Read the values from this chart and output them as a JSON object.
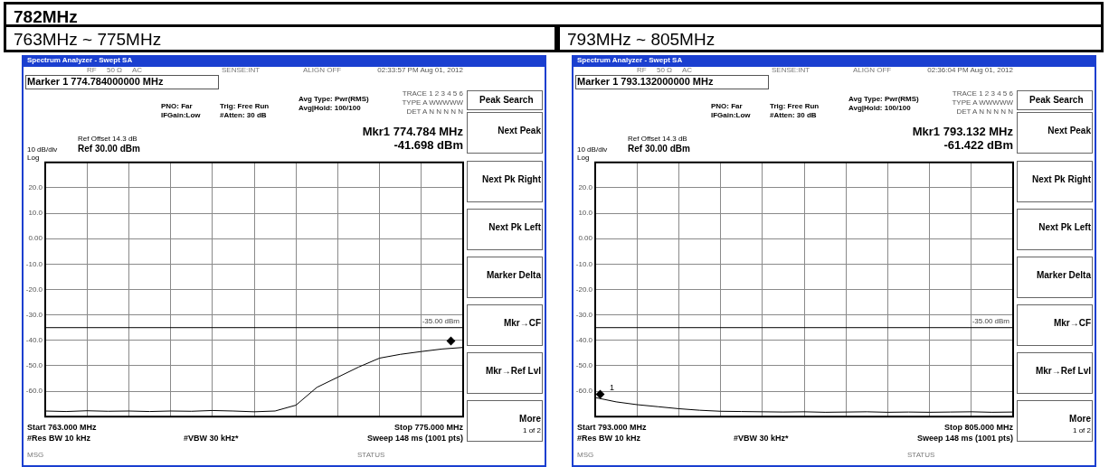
{
  "chart_data": [
    {
      "type": "line",
      "title": "782MHz",
      "subtitle": "763MHz ~ 775MHz",
      "categories": [
        null,
        null,
        null,
        null,
        null,
        null,
        null,
        null,
        null,
        null,
        null,
        null,
        null,
        null,
        null,
        null,
        null,
        null,
        null,
        null,
        null
      ],
      "ylim": [
        -70,
        30
      ],
      "yticks": [
        {
          "value": 30,
          "label": null
        },
        {
          "value": 20,
          "label": "20.0"
        },
        {
          "value": 10,
          "label": "10.0"
        },
        {
          "value": 0,
          "label": "0.00"
        },
        {
          "value": -10,
          "label": "-10.0"
        },
        {
          "value": -20,
          "label": "-20.0"
        },
        {
          "value": -30,
          "label": "-30.0"
        },
        {
          "value": -40,
          "label": "-40.0"
        },
        {
          "value": -50,
          "label": "-50.0"
        },
        {
          "value": -60,
          "label": "-60.0"
        },
        {
          "value": -70,
          "label": null
        }
      ],
      "tick_labels": "y",
      "grid": true,
      "marker": "none",
      "ref_lines": [
        {
          "axis": "y",
          "value": -35,
          "label": "-35.00 dBm",
          "color": "#000000"
        }
      ],
      "series": [
        {
          "color": "#000000",
          "values": [
            -67.8,
            -68.0,
            -67.7,
            -67.9,
            -67.8,
            -68.0,
            -67.8,
            -67.9,
            -67.6,
            -67.8,
            -68.1,
            -67.8,
            -65.5,
            -58.5,
            -54.5,
            -50.5,
            -47,
            -45.5,
            -44.4,
            -43.4,
            -42.8
          ]
        }
      ],
      "annotations": [
        "Spectrum Analyzer - Swept SA",
        "RF",
        "50 Ω",
        "AC",
        "SENSE:INT",
        "ALIGN OFF",
        "02:33:57 PM Aug 01, 2012",
        "Marker 1 774.784000000 MHz",
        "PNO: Far",
        "IFGain:Low",
        "Trig: Free Run",
        "#Atten: 30 dB",
        "Avg Type: Pwr(RMS)",
        "Avg|Hold: 100/100",
        "TRACE 1 2 3 4 5 6",
        "TYPE A WWWWW",
        "DET A N N N N N",
        "Mkr1 774.784 MHz",
        "-41.698 dBm",
        "Ref Offset 14.3 dB",
        "Ref 30.00 dBm",
        "10 dB/div",
        "Log",
        "Start 763.000 MHz",
        "#Res BW 10 kHz",
        "#VBW 30 kHz*",
        "Stop 775.000 MHz",
        "Sweep  148 ms (1001 pts)",
        "MSG",
        "STATUS",
        "Peak Search",
        "Next Peak",
        "Next Pk Right",
        "Next Pk Left",
        "Marker Delta",
        "Mkr→CF",
        "Mkr→Ref Lvl",
        "More",
        "1 of 2"
      ]
    },
    {
      "type": "line",
      "subtitle": "793MHz ~ 805MHz",
      "categories": [
        null,
        null,
        null,
        null,
        null,
        null,
        null,
        null,
        null,
        null,
        null,
        null,
        null,
        null,
        null,
        null,
        null,
        null,
        null,
        null,
        null
      ],
      "ylim": [
        -70,
        30
      ],
      "yticks": [
        {
          "value": 30,
          "label": null
        },
        {
          "value": 20,
          "label": "20.0"
        },
        {
          "value": 10,
          "label": "10.0"
        },
        {
          "value": 0,
          "label": "0.00"
        },
        {
          "value": -10,
          "label": "-10.0"
        },
        {
          "value": -20,
          "label": "-20.0"
        },
        {
          "value": -30,
          "label": "-30.0"
        },
        {
          "value": -40,
          "label": "-40.0"
        },
        {
          "value": -50,
          "label": "-50.0"
        },
        {
          "value": -60,
          "label": "-60.0"
        },
        {
          "value": -70,
          "label": null
        }
      ],
      "tick_labels": "y",
      "grid": true,
      "marker": "none",
      "ref_lines": [
        {
          "axis": "y",
          "value": -35,
          "label": "-35.00 dBm",
          "color": "#000000"
        }
      ],
      "series": [
        {
          "color": "#000000",
          "values": [
            -62.5,
            -64.2,
            -65.3,
            -66.1,
            -66.9,
            -67.5,
            -67.9,
            -68,
            -68.1,
            -68.2,
            -68.1,
            -68.3,
            -68.2,
            -68.1,
            -68.3,
            -68.2,
            -68.3,
            -68.2,
            -68.1,
            -68.3,
            -68.2
          ]
        }
      ],
      "annotations": [
        "Spectrum Analyzer - Swept SA",
        "RF",
        "50 Ω",
        "AC",
        "SENSE:INT",
        "ALIGN OFF",
        "02:36:04 PM Aug 01, 2012",
        "Marker 1 793.132000000 MHz",
        "PNO: Far",
        "IFGain:Low",
        "Trig: Free Run",
        "#Atten: 30 dB",
        "Avg Type: Pwr(RMS)",
        "Avg|Hold: 100/100",
        "TRACE 1 2 3 4 5 6",
        "TYPE A WWWWW",
        "DET A N N N N N",
        "Mkr1 793.132 MHz",
        "-61.422 dBm",
        "Ref Offset 14.3 dB",
        "Ref 30.00 dBm",
        "10 dB/div",
        "Log",
        "Start 793.000 MHz",
        "#Res BW 10 kHz",
        "#VBW 30 kHz*",
        "Stop 805.000 MHz",
        "Sweep  148 ms (1001 pts)",
        "MSG",
        "STATUS",
        "Peak Search",
        "Next Peak",
        "Next Pk Right",
        "Next Pk Left",
        "Marker Delta",
        "Mkr→CF",
        "Mkr→Ref Lvl",
        "More",
        "1 of 2",
        "1"
      ]
    }
  ]
}
